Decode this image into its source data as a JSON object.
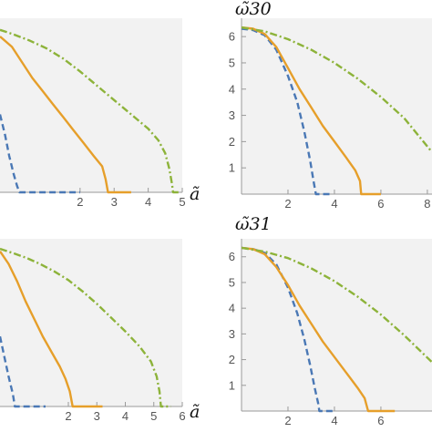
{
  "chart_data": [
    {
      "type": "line",
      "title": "",
      "xlabel": "ã",
      "ylabel": "",
      "xlim": [
        -0.35,
        5.0
      ],
      "ylim": [
        0,
        6.7
      ],
      "xticks": [
        "2",
        "3",
        "4",
        "5"
      ],
      "yticks": [],
      "grid": false,
      "series": [
        {
          "color": "#4a78b5",
          "style": "dashed",
          "points": [
            [
              -0.35,
              3.0
            ],
            [
              -0.2,
              2.2
            ],
            [
              -0.08,
              1.4
            ],
            [
              0.05,
              0.7
            ],
            [
              0.15,
              0.25
            ],
            [
              0.22,
              0.0
            ],
            [
              0.6,
              0.0
            ],
            [
              1.0,
              0.0
            ],
            [
              2.0,
              0.0
            ]
          ]
        },
        {
          "color": "#e69f2a",
          "style": "solid",
          "points": [
            [
              -0.35,
              6.0
            ],
            [
              0.0,
              5.6
            ],
            [
              0.3,
              5.0
            ],
            [
              0.6,
              4.4
            ],
            [
              0.9,
              3.9
            ],
            [
              1.2,
              3.4
            ],
            [
              1.5,
              2.9
            ],
            [
              1.8,
              2.4
            ],
            [
              2.1,
              1.9
            ],
            [
              2.4,
              1.4
            ],
            [
              2.65,
              1.0
            ],
            [
              2.75,
              0.5
            ],
            [
              2.82,
              0.0
            ],
            [
              3.0,
              0.0
            ],
            [
              3.5,
              0.0
            ]
          ]
        },
        {
          "color": "#8db33a",
          "style": "dashdot",
          "points": [
            [
              -0.35,
              6.25
            ],
            [
              0.0,
              6.1
            ],
            [
              0.5,
              5.85
            ],
            [
              1.0,
              5.55
            ],
            [
              1.5,
              5.15
            ],
            [
              2.0,
              4.65
            ],
            [
              2.5,
              4.1
            ],
            [
              3.0,
              3.55
            ],
            [
              3.5,
              3.0
            ],
            [
              4.0,
              2.45
            ],
            [
              4.3,
              2.0
            ],
            [
              4.5,
              1.5
            ],
            [
              4.62,
              0.9
            ],
            [
              4.7,
              0.3
            ],
            [
              4.73,
              0.0
            ],
            [
              4.9,
              0.0
            ]
          ]
        }
      ]
    },
    {
      "type": "line",
      "title": "ω̃30",
      "xlabel": "",
      "ylabel": "ω̃30",
      "xlim": [
        0,
        8.2
      ],
      "ylim": [
        0,
        6.7
      ],
      "xticks": [
        "2",
        "4",
        "6",
        "8"
      ],
      "yticks": [
        "1",
        "2",
        "3",
        "4",
        "5",
        "6"
      ],
      "grid": false,
      "series": [
        {
          "color": "#4a78b5",
          "style": "dashed",
          "points": [
            [
              0.0,
              6.3
            ],
            [
              0.5,
              6.25
            ],
            [
              1.0,
              6.05
            ],
            [
              1.5,
              5.5
            ],
            [
              2.0,
              4.5
            ],
            [
              2.4,
              3.5
            ],
            [
              2.7,
              2.4
            ],
            [
              2.95,
              1.3
            ],
            [
              3.1,
              0.5
            ],
            [
              3.2,
              0.0
            ],
            [
              3.8,
              0.0
            ]
          ]
        },
        {
          "color": "#e69f2a",
          "style": "solid",
          "points": [
            [
              0.0,
              6.35
            ],
            [
              0.5,
              6.3
            ],
            [
              1.0,
              6.1
            ],
            [
              1.5,
              5.6
            ],
            [
              2.0,
              4.8
            ],
            [
              2.5,
              4.0
            ],
            [
              3.0,
              3.3
            ],
            [
              3.5,
              2.6
            ],
            [
              4.0,
              2.0
            ],
            [
              4.5,
              1.4
            ],
            [
              4.9,
              0.9
            ],
            [
              5.1,
              0.5
            ],
            [
              5.15,
              0.0
            ],
            [
              5.6,
              0.0
            ],
            [
              6.0,
              0.0
            ]
          ]
        },
        {
          "color": "#8db33a",
          "style": "dashdot",
          "points": [
            [
              0.0,
              6.35
            ],
            [
              1.0,
              6.2
            ],
            [
              2.0,
              5.9
            ],
            [
              3.0,
              5.5
            ],
            [
              4.0,
              5.0
            ],
            [
              5.0,
              4.4
            ],
            [
              6.0,
              3.7
            ],
            [
              7.0,
              2.9
            ],
            [
              8.2,
              1.6
            ]
          ]
        }
      ]
    },
    {
      "type": "line",
      "title": "",
      "xlabel": "ã",
      "ylabel": "",
      "xlim": [
        -0.4,
        6.0
      ],
      "ylim": [
        0,
        6.7
      ],
      "xticks": [
        "2",
        "3",
        "4",
        "5",
        "6"
      ],
      "yticks": [],
      "grid": false,
      "series": [
        {
          "color": "#4a78b5",
          "style": "dashed",
          "points": [
            [
              -0.4,
              2.8
            ],
            [
              -0.25,
              2.0
            ],
            [
              -0.1,
              1.2
            ],
            [
              0.05,
              0.5
            ],
            [
              0.12,
              0.0
            ],
            [
              0.6,
              0.0
            ],
            [
              1.2,
              0.0
            ]
          ]
        },
        {
          "color": "#e69f2a",
          "style": "solid",
          "points": [
            [
              -0.4,
              6.2
            ],
            [
              -0.1,
              5.7
            ],
            [
              0.2,
              5.0
            ],
            [
              0.5,
              4.2
            ],
            [
              0.8,
              3.5
            ],
            [
              1.1,
              2.8
            ],
            [
              1.4,
              2.2
            ],
            [
              1.7,
              1.6
            ],
            [
              1.9,
              1.1
            ],
            [
              2.05,
              0.6
            ],
            [
              2.15,
              0.0
            ],
            [
              2.6,
              0.0
            ],
            [
              3.2,
              0.0
            ]
          ]
        },
        {
          "color": "#8db33a",
          "style": "dashdot",
          "points": [
            [
              -0.4,
              6.3
            ],
            [
              0.0,
              6.15
            ],
            [
              0.5,
              5.95
            ],
            [
              1.0,
              5.7
            ],
            [
              1.5,
              5.4
            ],
            [
              2.0,
              5.05
            ],
            [
              2.5,
              4.6
            ],
            [
              3.0,
              4.1
            ],
            [
              3.5,
              3.55
            ],
            [
              4.0,
              3.0
            ],
            [
              4.5,
              2.4
            ],
            [
              4.9,
              1.8
            ],
            [
              5.1,
              1.2
            ],
            [
              5.2,
              0.6
            ],
            [
              5.25,
              0.0
            ],
            [
              5.6,
              0.0
            ]
          ]
        }
      ]
    },
    {
      "type": "line",
      "title": "ω̃31",
      "xlabel": "",
      "ylabel": "ω̃31",
      "xlim": [
        0,
        8.2
      ],
      "ylim": [
        0,
        6.7
      ],
      "xticks": [
        "2",
        "4",
        "6"
      ],
      "yticks": [
        "1",
        "2",
        "3",
        "4",
        "5",
        "6"
      ],
      "grid": false,
      "series": [
        {
          "color": "#4a78b5",
          "style": "dashed",
          "points": [
            [
              0.0,
              6.35
            ],
            [
              0.5,
              6.3
            ],
            [
              1.0,
              6.15
            ],
            [
              1.5,
              5.7
            ],
            [
              2.0,
              4.8
            ],
            [
              2.4,
              3.8
            ],
            [
              2.7,
              2.8
            ],
            [
              2.95,
              1.8
            ],
            [
              3.15,
              0.9
            ],
            [
              3.3,
              0.3
            ],
            [
              3.35,
              0.0
            ],
            [
              4.0,
              0.0
            ]
          ]
        },
        {
          "color": "#e69f2a",
          "style": "solid",
          "points": [
            [
              0.0,
              6.35
            ],
            [
              0.5,
              6.3
            ],
            [
              1.0,
              6.1
            ],
            [
              1.5,
              5.6
            ],
            [
              2.0,
              4.9
            ],
            [
              2.5,
              4.1
            ],
            [
              3.0,
              3.4
            ],
            [
              3.5,
              2.7
            ],
            [
              4.0,
              2.1
            ],
            [
              4.5,
              1.5
            ],
            [
              5.0,
              0.9
            ],
            [
              5.3,
              0.5
            ],
            [
              5.45,
              0.0
            ],
            [
              6.0,
              0.0
            ],
            [
              6.6,
              0.0
            ]
          ]
        },
        {
          "color": "#8db33a",
          "style": "dashdot",
          "points": [
            [
              0.0,
              6.35
            ],
            [
              1.0,
              6.2
            ],
            [
              2.0,
              5.95
            ],
            [
              3.0,
              5.55
            ],
            [
              4.0,
              5.05
            ],
            [
              5.0,
              4.45
            ],
            [
              6.0,
              3.75
            ],
            [
              7.0,
              2.95
            ],
            [
              8.2,
              1.9
            ]
          ]
        }
      ]
    }
  ]
}
